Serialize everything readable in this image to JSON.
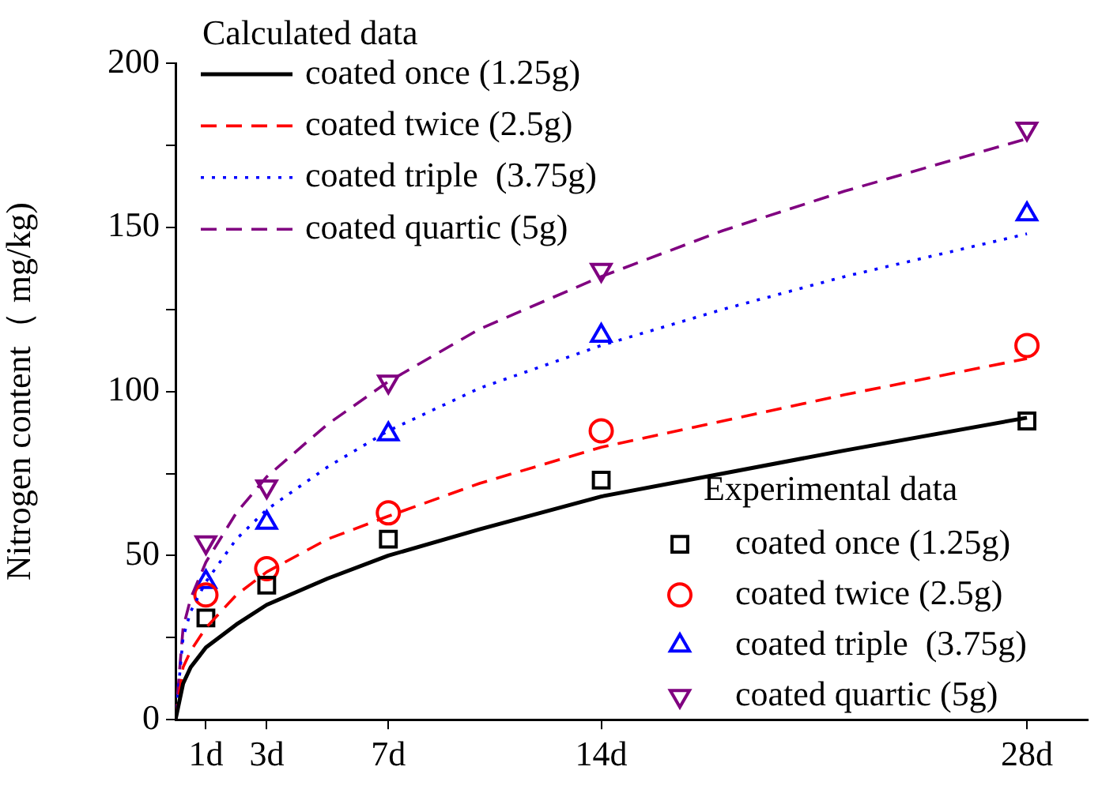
{
  "chart_data": {
    "type": "line",
    "xlabel": null,
    "ylabel": "Nitrogen content（ mg/kg)",
    "legend_title": "Calculated data",
    "annotations": [
      "Experimental data"
    ],
    "legend": "top left",
    "grid": false,
    "xlim": [
      0,
      30
    ],
    "xticks": [
      {
        "value": 1,
        "label": "1d"
      },
      {
        "value": 3,
        "label": "3d"
      },
      {
        "value": 7,
        "label": "7d"
      },
      {
        "value": 14,
        "label": "14d"
      },
      {
        "value": 28,
        "label": "28d"
      }
    ],
    "ylim": [
      0,
      200
    ],
    "yticks": [
      0,
      {
        "value": 25,
        "label": null
      },
      50,
      {
        "value": 75,
        "label": null
      },
      100,
      {
        "value": 125,
        "label": null
      },
      150,
      {
        "value": 175,
        "label": null
      },
      200
    ],
    "series": [
      {
        "name": "coated once (1.25g)",
        "type": "line",
        "color": "#000000",
        "line_style": "solid",
        "marker": "none",
        "x": [
          0,
          0.25,
          0.5,
          1,
          2,
          3,
          5,
          7,
          10,
          14,
          18,
          22,
          28
        ],
        "values": [
          0,
          11,
          16,
          22,
          29,
          35,
          43,
          50,
          58,
          68,
          75,
          82,
          92
        ]
      },
      {
        "name": "coated twice (2.5g)",
        "type": "line",
        "color": "#ff0000",
        "line_style": "dashed",
        "marker": "none",
        "x": [
          0,
          0.25,
          0.5,
          1,
          2,
          3,
          5,
          7,
          10,
          14,
          18,
          22,
          28
        ],
        "values": [
          0,
          16,
          21,
          28,
          38,
          45,
          55,
          62,
          72,
          83,
          91,
          99,
          110
        ]
      },
      {
        "name": "coated triple  (3.75g)",
        "type": "line",
        "color": "#0000ff",
        "line_style": "dotted",
        "marker": "none",
        "x": [
          0,
          0.25,
          0.5,
          1,
          2,
          3,
          5,
          7,
          10,
          14,
          18,
          22,
          28
        ],
        "values": [
          0,
          25,
          33,
          42,
          55,
          64,
          77,
          88,
          101,
          114,
          125,
          135,
          148
        ]
      },
      {
        "name": "coated quartic (5g)",
        "type": "line",
        "color": "#800080",
        "line_style": "dashed",
        "marker": "none",
        "x": [
          0,
          0.25,
          0.5,
          1,
          2,
          3,
          5,
          7,
          10,
          14,
          18,
          22,
          28
        ],
        "values": [
          0,
          28,
          37,
          48,
          63,
          74,
          90,
          103,
          119,
          135,
          149,
          161,
          177
        ]
      },
      {
        "name": "coated once (1.25g)",
        "type": "scatter",
        "color": "#000000",
        "marker": "square",
        "x": [
          1,
          3,
          7,
          14,
          28
        ],
        "values": [
          31,
          41,
          55,
          73,
          91
        ]
      },
      {
        "name": "coated twice (2.5g)",
        "type": "scatter",
        "color": "#ff0000",
        "marker": "circle",
        "x": [
          1,
          3,
          7,
          14,
          28
        ],
        "values": [
          38,
          46,
          63,
          88,
          114
        ]
      },
      {
        "name": "coated triple  (3.75g)",
        "type": "scatter",
        "color": "#0000ff",
        "marker": "triangle",
        "x": [
          1,
          3,
          7,
          14,
          28
        ],
        "values": [
          42,
          60,
          87,
          117,
          154
        ]
      },
      {
        "name": "coated quartic (5g)",
        "type": "scatter",
        "color": "#800080",
        "marker": "triangle-down",
        "x": [
          1,
          3,
          7,
          14,
          28
        ],
        "values": [
          54,
          71,
          103,
          137,
          180
        ]
      }
    ]
  }
}
